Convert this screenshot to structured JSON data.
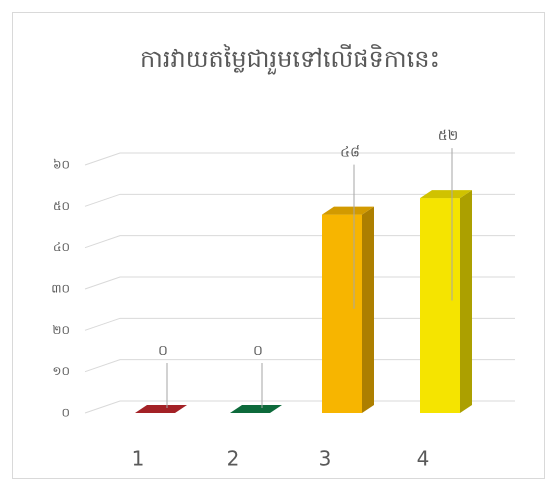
{
  "chart_data": {
    "type": "bar3d",
    "title": "ការវាយតម្លៃជារួមទៅលើផទិកានេះ",
    "categories": [
      "1",
      "2",
      "3",
      "4"
    ],
    "values": [
      0,
      0,
      48,
      52
    ],
    "value_labels": [
      "០",
      "០",
      "៤៨",
      "៥២"
    ],
    "colors": [
      "#c0272d",
      "#0f7d45",
      "#f7b500",
      "#f5e400"
    ],
    "ylim": [
      0,
      60
    ],
    "yticks": [
      {
        "value": 0,
        "label": "០"
      },
      {
        "value": 10,
        "label": "១០"
      },
      {
        "value": 20,
        "label": "២០"
      },
      {
        "value": 30,
        "label": "៣០"
      },
      {
        "value": 40,
        "label": "៤០"
      },
      {
        "value": 50,
        "label": "៥០"
      },
      {
        "value": 60,
        "label": "៦០"
      }
    ],
    "grid": true
  }
}
